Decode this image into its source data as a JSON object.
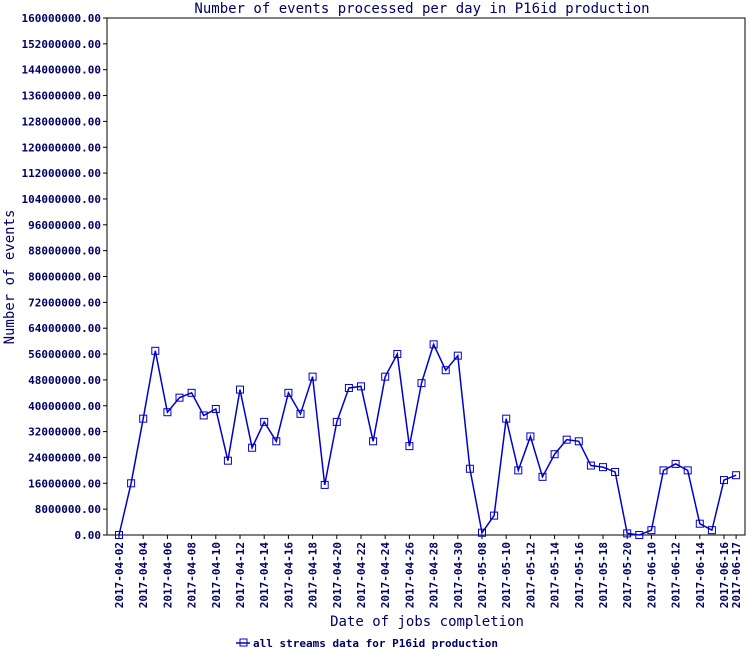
{
  "chart_data": {
    "type": "line",
    "title": "Number of events processed per day in P16id production",
    "xlabel": "Date of jobs completion",
    "ylabel": "Number of events",
    "ylim": [
      0,
      160000000
    ],
    "grid": false,
    "legend_position": "bottom",
    "y_ticks": [
      "0.00",
      "8000000.00",
      "16000000.00",
      "24000000.00",
      "32000000.00",
      "40000000.00",
      "48000000.00",
      "56000000.00",
      "64000000.00",
      "72000000.00",
      "80000000.00",
      "88000000.00",
      "96000000.00",
      "104000000.00",
      "112000000.00",
      "120000000.00",
      "128000000.00",
      "136000000.00",
      "144000000.00",
      "152000000.00",
      "160000000.00"
    ],
    "x_ticks": [
      "2017-04-02",
      "2017-04-04",
      "2017-04-06",
      "2017-04-08",
      "2017-04-10",
      "2017-04-12",
      "2017-04-14",
      "2017-04-16",
      "2017-04-18",
      "2017-04-20",
      "2017-04-22",
      "2017-04-24",
      "2017-04-26",
      "2017-04-28",
      "2017-04-30",
      "2017-05-08",
      "2017-05-10",
      "2017-05-12",
      "2017-05-14",
      "2017-05-16",
      "2017-05-18",
      "2017-05-20",
      "2017-06-10",
      "2017-06-12",
      "2017-06-14",
      "2017-06-16",
      "2017-06-17"
    ],
    "series": [
      {
        "name": "all streams data for P16id production",
        "color": "#0000cc",
        "values": [
          0,
          16000000,
          36000000,
          57000000,
          38000000,
          42500000,
          44000000,
          37000000,
          39000000,
          23000000,
          45000000,
          27000000,
          35000000,
          29000000,
          44000000,
          37500000,
          49000000,
          15500000,
          35000000,
          45500000,
          46000000,
          29000000,
          49000000,
          56000000,
          27500000,
          47000000,
          59000000,
          51000000,
          55500000,
          20500000,
          700000,
          6000000,
          36000000,
          20000000,
          30500000,
          18000000,
          25000000,
          29500000,
          29000000,
          21500000,
          21000000,
          19500000,
          500000,
          0,
          1500000,
          20000000,
          22000000,
          20000000,
          3500000,
          1500000,
          17000000,
          18500000
        ]
      }
    ]
  }
}
